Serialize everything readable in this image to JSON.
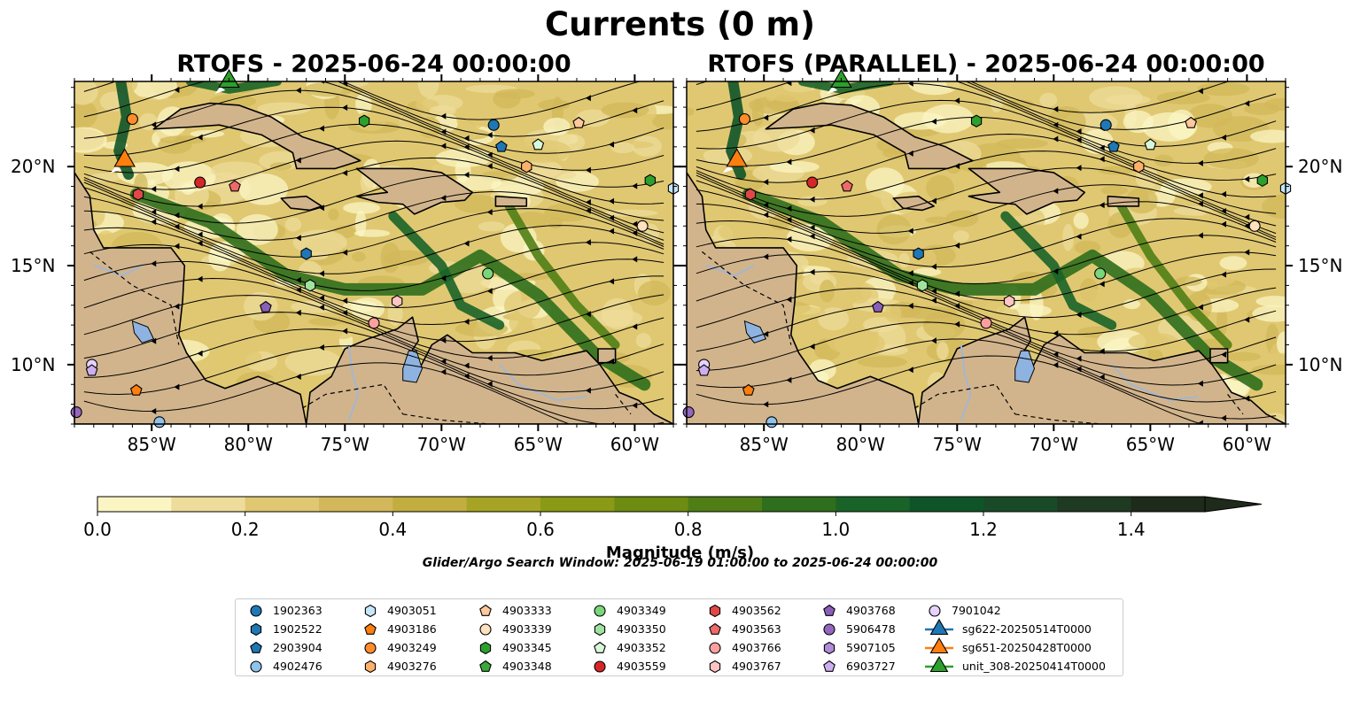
{
  "figure": {
    "suptitle": "Currents (0 m)",
    "search_window": "Glider/Argo Search Window: 2025-06-19 01:00:00 to 2025-06-24 00:00:00",
    "colors": {
      "land": "#d2b48c",
      "lakes": "#8fb3e0",
      "rivers": "#a3b7d1",
      "coast": "#000000"
    }
  },
  "chart_data": [
    {
      "type": "heatmap",
      "title": "RTOFS - 2025-06-24 00:00:00",
      "variable": "Current magnitude with streamlines",
      "xlim": [
        -89.0,
        -58.0
      ],
      "ylim": [
        7.0,
        24.3
      ],
      "xticks": [
        "85°W",
        "80°W",
        "75°W",
        "70°W",
        "65°W",
        "60°W"
      ],
      "yticks": [
        "20°N",
        "15°N",
        "10°N"
      ],
      "ytick_side": "left"
    },
    {
      "type": "heatmap",
      "title": "RTOFS (PARALLEL) - 2025-06-24 00:00:00",
      "variable": "Current magnitude with streamlines",
      "xlim": [
        -89.0,
        -58.0
      ],
      "ylim": [
        7.0,
        24.3
      ],
      "xticks": [
        "85°W",
        "80°W",
        "75°W",
        "70°W",
        "65°W",
        "60°W"
      ],
      "yticks": [
        "20°N",
        "15°N",
        "10°N"
      ],
      "ytick_side": "right"
    }
  ],
  "colorbar": {
    "label": "Magnitude (m/s)",
    "min": 0.0,
    "max": 1.5,
    "extend": "max",
    "ticks": [
      "0.0",
      "0.2",
      "0.4",
      "0.6",
      "0.8",
      "1.0",
      "1.2",
      "1.4"
    ],
    "tick_values": [
      0.0,
      0.2,
      0.4,
      0.6,
      0.8,
      1.0,
      1.2,
      1.4
    ],
    "bin_colors": [
      "#fbf5c4",
      "#eedc9a",
      "#e0c872",
      "#d2b85a",
      "#c2ad40",
      "#a6a425",
      "#8a9a14",
      "#6e8c12",
      "#4f7e16",
      "#2f6e1c",
      "#1a6328",
      "#0f5428",
      "#194a28",
      "#1f3a22",
      "#1e2a1a"
    ]
  },
  "legend": {
    "items": [
      {
        "label": "1902363",
        "marker": "circle",
        "color": "#1f77b4"
      },
      {
        "label": "1902522",
        "marker": "hexagon",
        "color": "#1f77b4"
      },
      {
        "label": "2903904",
        "marker": "pentagon",
        "color": "#1f77b4"
      },
      {
        "label": "4902476",
        "marker": "circle",
        "color": "#8fc3ea"
      },
      {
        "label": "4903051",
        "marker": "hexagon",
        "color": "#c5e6fb"
      },
      {
        "label": "4903186",
        "marker": "pentagon",
        "color": "#ff7f0e"
      },
      {
        "label": "4903249",
        "marker": "circle",
        "color": "#ff8c2a"
      },
      {
        "label": "4903276",
        "marker": "hexagon",
        "color": "#ffb06b"
      },
      {
        "label": "4903333",
        "marker": "pentagon",
        "color": "#ffc89b"
      },
      {
        "label": "4903339",
        "marker": "circle",
        "color": "#ffe0bf"
      },
      {
        "label": "4903345",
        "marker": "hexagon",
        "color": "#2ca02c"
      },
      {
        "label": "4903348",
        "marker": "pentagon",
        "color": "#3aa83a"
      },
      {
        "label": "4903349",
        "marker": "circle",
        "color": "#7ad67a"
      },
      {
        "label": "4903350",
        "marker": "hexagon",
        "color": "#9fe39f"
      },
      {
        "label": "4903352",
        "marker": "pentagon",
        "color": "#d8f7d8"
      },
      {
        "label": "4903559",
        "marker": "circle",
        "color": "#d62728"
      },
      {
        "label": "4903562",
        "marker": "hexagon",
        "color": "#e04848"
      },
      {
        "label": "4903563",
        "marker": "pentagon",
        "color": "#ee6a6a"
      },
      {
        "label": "4903766",
        "marker": "circle",
        "color": "#ff9e9e"
      },
      {
        "label": "4903767",
        "marker": "hexagon",
        "color": "#ffc4c4"
      },
      {
        "label": "4903768",
        "marker": "pentagon",
        "color": "#8a5fb8"
      },
      {
        "label": "5906478",
        "marker": "circle",
        "color": "#9467bd"
      },
      {
        "label": "5907105",
        "marker": "hexagon",
        "color": "#b08bd6"
      },
      {
        "label": "6903727",
        "marker": "pentagon",
        "color": "#cfaef0"
      },
      {
        "label": "7901042",
        "marker": "circle",
        "color": "#e6d2ff"
      },
      {
        "label": "sg622-20250514T0000",
        "marker": "triangle-line",
        "color": "#1f77b4"
      },
      {
        "label": "sg651-20250428T0000",
        "marker": "triangle-line",
        "color": "#ff7f0e"
      },
      {
        "label": "unit_308-20250414T0000",
        "marker": "triangle-line",
        "color": "#2ca02c"
      }
    ]
  },
  "floats_map": [
    {
      "id": "1902363",
      "lon": -67.3,
      "lat": 22.1
    },
    {
      "id": "2903904",
      "lon": -66.9,
      "lat": 21.0
    },
    {
      "id": "4903352",
      "lon": -65.0,
      "lat": 21.1
    },
    {
      "id": "4903333",
      "lon": -62.9,
      "lat": 22.2
    },
    {
      "id": "4903345",
      "lon": -74.0,
      "lat": 22.3
    },
    {
      "id": "4903249",
      "lon": -86.0,
      "lat": 22.4
    },
    {
      "id": "4903276",
      "lon": -65.6,
      "lat": 20.0
    },
    {
      "id": "4903559",
      "lon": -82.5,
      "lat": 19.2
    },
    {
      "id": "4903563",
      "lon": -80.7,
      "lat": 19.0
    },
    {
      "id": "4903562",
      "lon": -85.7,
      "lat": 18.6
    },
    {
      "id": "4903051",
      "lon": -58.0,
      "lat": 18.9
    },
    {
      "id": "4903345",
      "lon": -59.2,
      "lat": 19.3
    },
    {
      "id": "4903339",
      "lon": -59.6,
      "lat": 17.0
    },
    {
      "id": "1902522",
      "lon": -77.0,
      "lat": 15.6
    },
    {
      "id": "4903349",
      "lon": -67.6,
      "lat": 14.6
    },
    {
      "id": "4903350",
      "lon": -76.8,
      "lat": 14.0
    },
    {
      "id": "4903768",
      "lon": -79.1,
      "lat": 12.9
    },
    {
      "id": "4903767",
      "lon": -72.3,
      "lat": 13.2
    },
    {
      "id": "4903766",
      "lon": -73.5,
      "lat": 12.1
    },
    {
      "id": "7901042",
      "lon": -88.1,
      "lat": 10.0
    },
    {
      "id": "6903727",
      "lon": -88.1,
      "lat": 9.7
    },
    {
      "id": "4903186",
      "lon": -85.8,
      "lat": 8.7
    },
    {
      "id": "5906478",
      "lon": -88.9,
      "lat": 7.6
    },
    {
      "id": "4902476",
      "lon": -84.6,
      "lat": 7.1
    }
  ],
  "gliders_map": [
    {
      "id": "sg651-20250428T0000",
      "lon": -86.4,
      "lat": 20.3
    },
    {
      "id": "unit_308-20250414T0000",
      "lon": -81.0,
      "lat": 24.3
    }
  ]
}
